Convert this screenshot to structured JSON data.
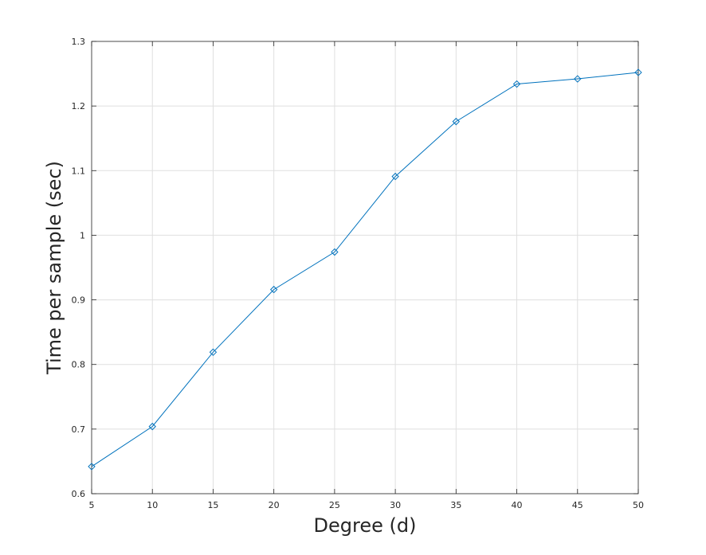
{
  "chart_data": {
    "type": "line",
    "title": "",
    "xlabel": "Degree (d)",
    "ylabel": "Time per sample (sec)",
    "xlim": [
      5,
      50
    ],
    "ylim": [
      0.6,
      1.3
    ],
    "xticks": [
      5,
      10,
      15,
      20,
      25,
      30,
      35,
      40,
      45,
      50
    ],
    "yticks": [
      0.6,
      0.7,
      0.8,
      0.9,
      1.0,
      1.1,
      1.2,
      1.3
    ],
    "ytick_labels": [
      "0.6",
      "0.7",
      "0.8",
      "0.9",
      "1",
      "1.1",
      "1.2",
      "1.3"
    ],
    "grid": true,
    "marker": "diamond",
    "series": [
      {
        "color": "#0072bd",
        "x": [
          5,
          10,
          15,
          20,
          25,
          30,
          35,
          40,
          45,
          50
        ],
        "y": [
          0.642,
          0.704,
          0.819,
          0.916,
          0.974,
          1.091,
          1.176,
          1.234,
          1.242,
          1.252
        ]
      }
    ]
  }
}
